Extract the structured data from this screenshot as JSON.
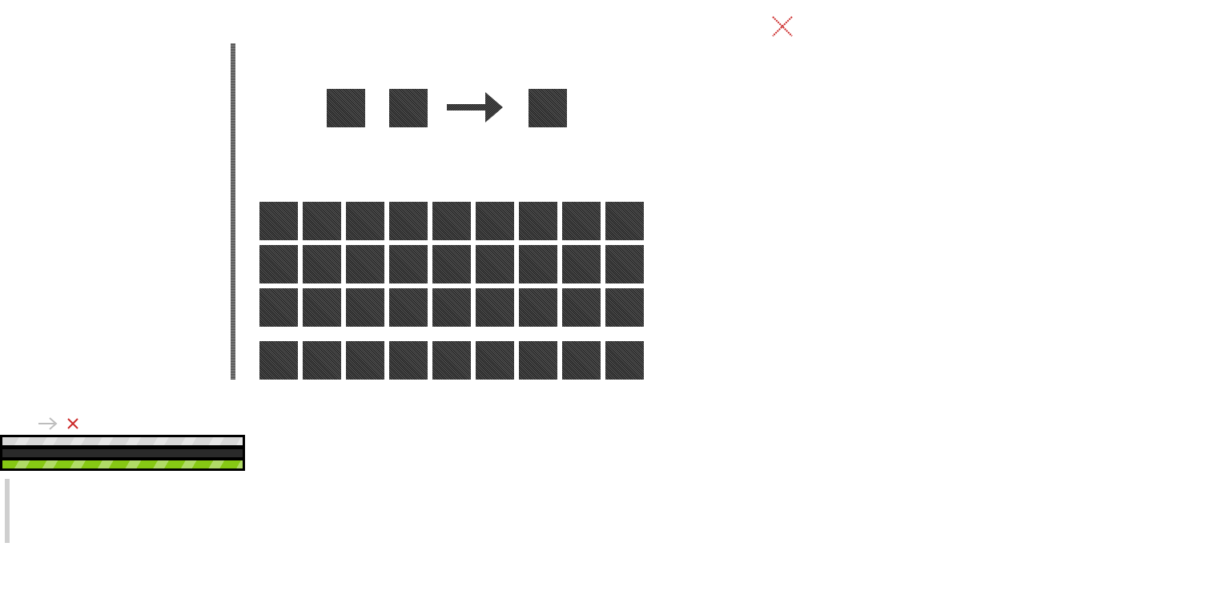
{
  "crafting": {
    "inputs": [
      {
        "item": "empty"
      },
      {
        "item": "empty"
      }
    ],
    "output": {
      "item": "empty"
    }
  },
  "inventory": {
    "rows": [
      [
        "empty",
        "empty",
        "empty",
        "empty",
        "empty",
        "empty",
        "empty",
        "empty",
        "empty"
      ],
      [
        "empty",
        "empty",
        "empty",
        "empty",
        "empty",
        "empty",
        "empty",
        "empty",
        "empty"
      ],
      [
        "empty",
        "empty",
        "empty",
        "empty",
        "empty",
        "empty",
        "empty",
        "empty",
        "empty"
      ]
    ],
    "hotbar": [
      "empty",
      "empty",
      "empty",
      "empty",
      "empty",
      "empty",
      "empty",
      "empty",
      "empty"
    ]
  },
  "icons": {
    "close": "close-icon",
    "arrow": "arrow-right-icon",
    "small_arrow": "arrow-right-icon",
    "small_close": "close-icon"
  },
  "colors": {
    "close": "#cc2a2a",
    "arrow": "#404040",
    "health_bar": "#d8d8d8",
    "hunger_bar": "#2f2f2f",
    "xp_bar": "#86c814",
    "divider": "#6a6a6a"
  },
  "status_bars": [
    {
      "name": "top",
      "fraction": 1.0,
      "color": "#d8d8d8"
    },
    {
      "name": "middle",
      "fraction": 0.0,
      "color": "#2f2f2f"
    },
    {
      "name": "bottom",
      "fraction": 1.0,
      "color": "#86c814"
    }
  ]
}
